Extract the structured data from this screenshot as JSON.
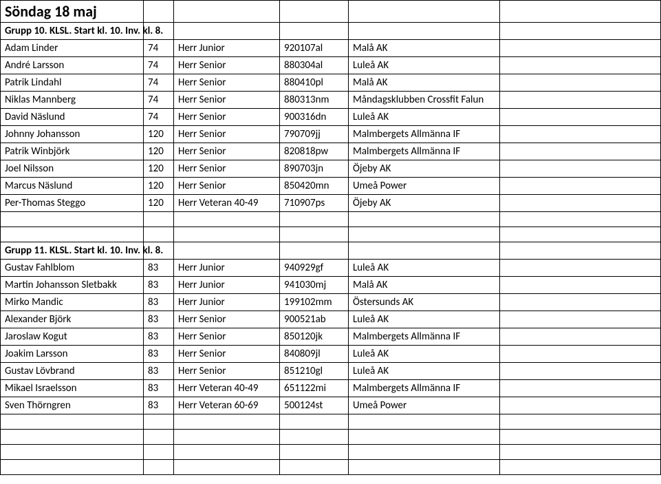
{
  "title": "Söndag 18 maj",
  "group10": {
    "header": "Grupp 10. KLSL. Start kl. 10. Inv. kl. 8.",
    "rows": [
      {
        "name": "Adam Linder",
        "num": "74",
        "cat": "Herr Junior",
        "code": "920107al",
        "club": "Malå AK"
      },
      {
        "name": "André Larsson",
        "num": "74",
        "cat": "Herr Senior",
        "code": "880304al",
        "club": "Luleå AK"
      },
      {
        "name": "Patrik Lindahl",
        "num": "74",
        "cat": "Herr Senior",
        "code": "880410pl",
        "club": "Malå AK"
      },
      {
        "name": "Niklas Mannberg",
        "num": "74",
        "cat": "Herr Senior",
        "code": "880313nm",
        "club": "Måndagsklubben Crossfit Falun"
      },
      {
        "name": "David Näslund",
        "num": "74",
        "cat": "Herr Senior",
        "code": "900316dn",
        "club": "Luleå AK"
      },
      {
        "name": "Johnny Johansson",
        "num": "120",
        "cat": "Herr Senior",
        "code": "790709jj",
        "club": "Malmbergets Allmänna IF"
      },
      {
        "name": "Patrik Winbjörk",
        "num": "120",
        "cat": "Herr Senior",
        "code": "820818pw",
        "club": "Malmbergets Allmänna IF"
      },
      {
        "name": "Joel Nilsson",
        "num": "120",
        "cat": "Herr Senior",
        "code": "890703jn",
        "club": "Öjeby AK"
      },
      {
        "name": "Marcus Näslund",
        "num": "120",
        "cat": "Herr Senior",
        "code": "850420mn",
        "club": "Umeå Power"
      },
      {
        "name": "Per-Thomas Steggo",
        "num": "120",
        "cat": "Herr Veteran 40-49",
        "code": "710907ps",
        "club": "Öjeby AK"
      }
    ]
  },
  "group11": {
    "header": "Grupp 11. KLSL. Start kl. 10. Inv. kl. 8.",
    "rows": [
      {
        "name": "Gustav Fahlblom",
        "num": "83",
        "cat": "Herr Junior",
        "code": "940929gf",
        "club": "Luleå AK"
      },
      {
        "name": "Martin Johansson Sletbakk",
        "num": "83",
        "cat": "Herr Junior",
        "code": "941030mj",
        "club": "Malå AK"
      },
      {
        "name": "Mirko Mandic",
        "num": "83",
        "cat": "Herr Junior",
        "code": "199102mm",
        "club": "Östersunds AK"
      },
      {
        "name": "Alexander Björk",
        "num": "83",
        "cat": "Herr Senior",
        "code": "900521ab",
        "club": "Luleå AK"
      },
      {
        "name": "Jaroslaw Kogut",
        "num": "83",
        "cat": "Herr Senior",
        "code": "850120jk",
        "club": "Malmbergets Allmänna IF"
      },
      {
        "name": "Joakim Larsson",
        "num": "83",
        "cat": "Herr Senior",
        "code": "840809jl",
        "club": "Luleå AK"
      },
      {
        "name": "Gustav Lövbrand",
        "num": "83",
        "cat": "Herr Senior",
        "code": "851210gl",
        "club": "Luleå AK"
      },
      {
        "name": "Mikael Israelsson",
        "num": "83",
        "cat": "Herr Veteran 40-49",
        "code": "651122mi",
        "club": "Malmbergets Allmänna IF"
      },
      {
        "name": "Sven Thörngren",
        "num": "83",
        "cat": "Herr Veteran 60-69",
        "code": "500124st",
        "club": "Umeå Power"
      }
    ]
  }
}
